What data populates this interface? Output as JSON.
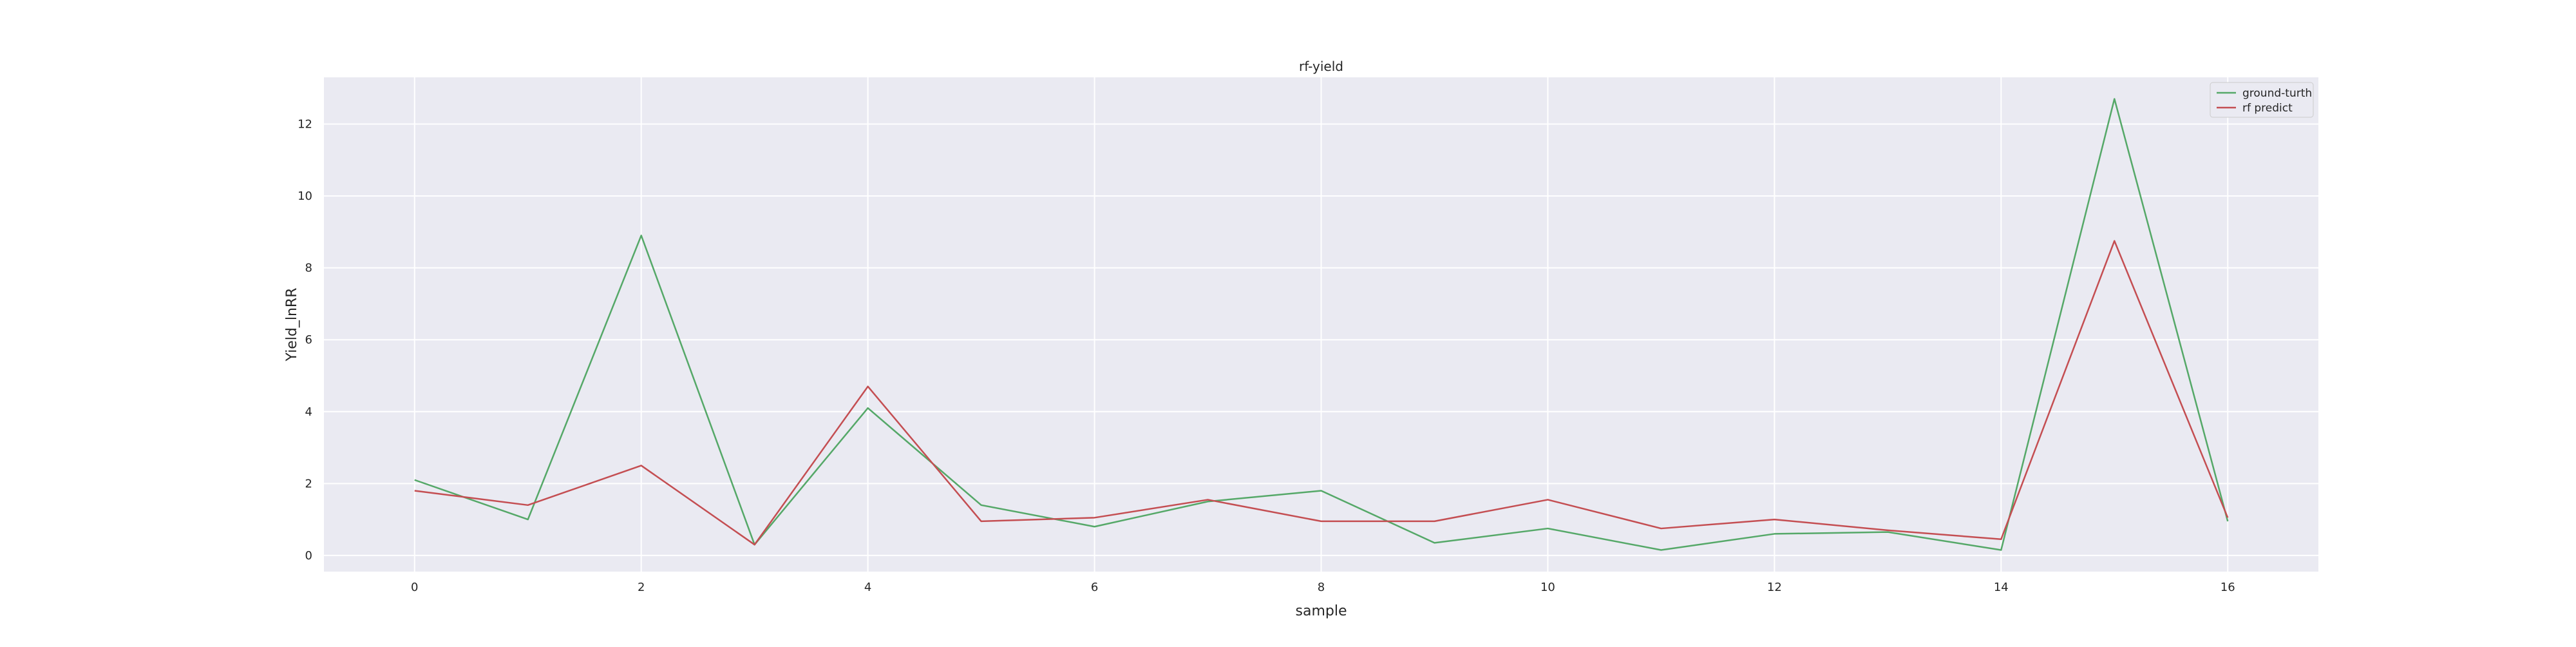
{
  "chart_data": {
    "type": "line",
    "title": "rf-yield",
    "xlabel": "sample",
    "ylabel": "Yield_lnRR",
    "x": [
      0,
      1,
      2,
      3,
      4,
      5,
      6,
      7,
      8,
      9,
      10,
      11,
      12,
      13,
      14,
      15,
      16
    ],
    "xlim": [
      -0.8,
      16.8
    ],
    "ylim": [
      -0.45,
      13.3
    ],
    "xticks": [
      0,
      2,
      4,
      6,
      8,
      10,
      12,
      14,
      16
    ],
    "yticks": [
      0,
      2,
      4,
      6,
      8,
      10,
      12
    ],
    "grid": true,
    "legend_position": "top-right",
    "series": [
      {
        "name": "ground-turth",
        "color": "#55a868",
        "values": [
          2.1,
          1.0,
          8.9,
          0.3,
          4.1,
          1.4,
          0.8,
          1.5,
          1.8,
          0.35,
          0.75,
          0.15,
          0.6,
          0.65,
          0.15,
          12.7,
          0.95
        ]
      },
      {
        "name": "rf predict",
        "color": "#c44e52",
        "values": [
          1.8,
          1.4,
          2.5,
          0.3,
          4.7,
          0.95,
          1.05,
          1.55,
          0.95,
          0.95,
          1.55,
          0.75,
          1.0,
          0.7,
          0.45,
          8.75,
          1.05
        ]
      }
    ]
  }
}
